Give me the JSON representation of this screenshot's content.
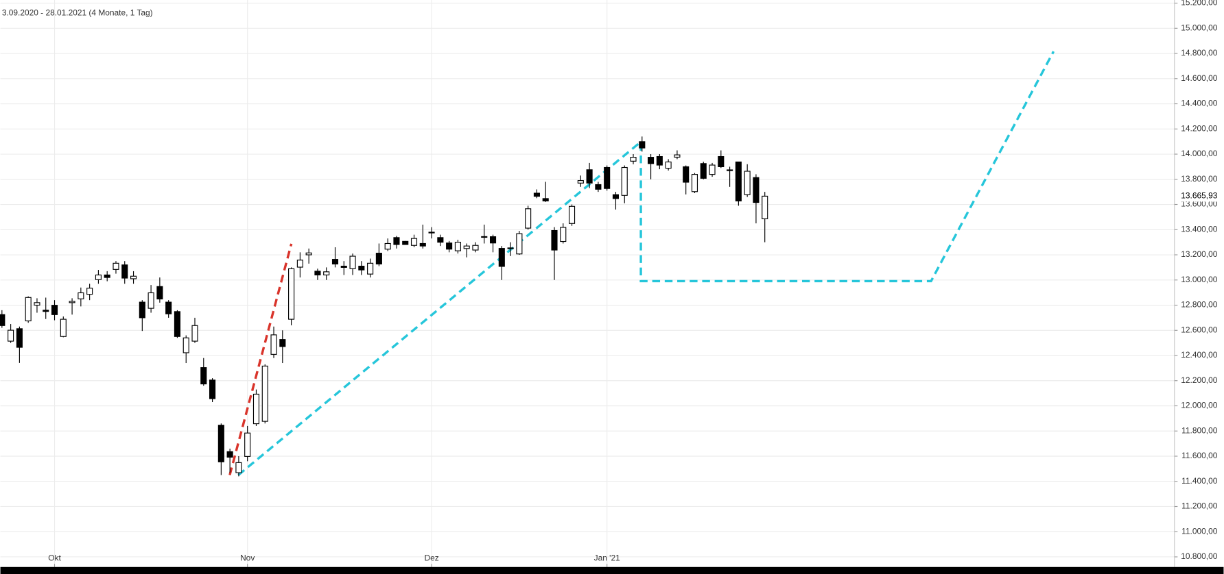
{
  "chart_data": {
    "type": "candlestick",
    "title": "3.09.2020 - 28.01.2021   (4 Monate, 1 Tag)",
    "categories": [
      null,
      null,
      null,
      null,
      null,
      null,
      "Okt",
      null,
      null,
      null,
      null,
      null,
      null,
      null,
      null,
      null,
      null,
      null,
      null,
      null,
      null,
      null,
      null,
      null,
      null,
      null,
      null,
      null,
      "Nov",
      null,
      null,
      null,
      null,
      null,
      null,
      null,
      null,
      null,
      null,
      null,
      null,
      null,
      null,
      null,
      null,
      null,
      null,
      null,
      null,
      "Dez",
      null,
      null,
      null,
      null,
      null,
      null,
      null,
      null,
      null,
      null,
      null,
      null,
      null,
      null,
      null,
      null,
      null,
      null,
      null,
      "Jan '21",
      null,
      null,
      null,
      null,
      null,
      null,
      null,
      null,
      null,
      null,
      null,
      null,
      null,
      null,
      null,
      null,
      null,
      null
    ],
    "open": [
      12725,
      12514,
      12613,
      12675,
      12800,
      12760,
      12799,
      12551,
      12820,
      12850,
      12886,
      13003,
      13040,
      13084,
      13120,
      13010,
      12824,
      12775,
      12948,
      12824,
      12749,
      12422,
      12514,
      12304,
      12205,
      11846,
      11636,
      11469,
      11598,
      11858,
      11877,
      12409,
      12527,
      12688,
      13102,
      13200,
      13070,
      13040,
      13164,
      13110,
      13090,
      13110,
      13047,
      13213,
      13245,
      13337,
      13307,
      13275,
      13290,
      13375,
      13337,
      13294,
      13232,
      13250,
      13238,
      13340,
      13344,
      13251,
      13255,
      13207,
      13412,
      13690,
      13647,
      13393,
      13306,
      13449,
      13770,
      13876,
      13758,
      13894,
      13678,
      13672,
      13944,
      14099,
      13975,
      13981,
      13888,
      13976,
      13900,
      13702,
      13925,
      13839,
      13981,
      13870,
      13938,
      13678,
      13814,
      13486
    ],
    "high": [
      12760,
      12650,
      12630,
      12870,
      12855,
      12860,
      12840,
      12710,
      12855,
      12940,
      12970,
      13080,
      13070,
      13150,
      13150,
      13070,
      12840,
      12960,
      13020,
      12840,
      12760,
      12560,
      12700,
      12380,
      12220,
      11860,
      11660,
      11600,
      11840,
      12130,
      12330,
      12630,
      12600,
      13100,
      13220,
      13250,
      13090,
      13100,
      13260,
      13150,
      13210,
      13150,
      13170,
      13290,
      13330,
      13350,
      13310,
      13360,
      13440,
      13420,
      13360,
      13310,
      13320,
      13290,
      13300,
      13440,
      13360,
      13270,
      13300,
      13390,
      13590,
      13720,
      13780,
      13420,
      13450,
      13600,
      13830,
      13930,
      13780,
      13910,
      13700,
      13910,
      14000,
      14140,
      14000,
      14000,
      13960,
      14030,
      13910,
      13850,
      13940,
      13930,
      14030,
      13900,
      13940,
      13920,
      13840,
      13700
    ],
    "low": [
      12620,
      12500,
      12341,
      12660,
      12740,
      12690,
      12680,
      12545,
      12725,
      12790,
      12840,
      12970,
      12990,
      13050,
      12970,
      12970,
      12595,
      12740,
      12820,
      12700,
      12540,
      12340,
      12500,
      12160,
      12030,
      11450,
      11470,
      11440,
      11560,
      11840,
      11860,
      12380,
      12340,
      12640,
      13020,
      13130,
      13000,
      13000,
      13100,
      13040,
      13040,
      13040,
      13020,
      13110,
      13230,
      13250,
      13280,
      13260,
      13250,
      13330,
      13270,
      13220,
      13210,
      13180,
      13220,
      13290,
      13220,
      13000,
      13190,
      13200,
      13400,
      13650,
      13620,
      13000,
      13290,
      13430,
      13740,
      13730,
      13700,
      13710,
      13560,
      13610,
      13920,
      14020,
      13800,
      13880,
      13870,
      13960,
      13680,
      13690,
      13800,
      13820,
      13890,
      13740,
      13590,
      13660,
      13450,
      13300
    ],
    "close": [
      12638,
      12601,
      12465,
      12861,
      12820,
      12750,
      12725,
      12688,
      12830,
      12898,
      12935,
      13040,
      13020,
      13133,
      13015,
      13030,
      12700,
      12898,
      12849,
      12731,
      12551,
      12540,
      12638,
      12174,
      12057,
      11555,
      11592,
      11549,
      11784,
      12093,
      12316,
      12564,
      12471,
      13090,
      13158,
      13215,
      13040,
      13065,
      13127,
      13100,
      13189,
      13080,
      13133,
      13127,
      13290,
      13282,
      13282,
      13330,
      13270,
      13380,
      13300,
      13245,
      13300,
      13270,
      13275,
      13345,
      13294,
      13108,
      13250,
      13368,
      13566,
      13665,
      13628,
      13238,
      13418,
      13585,
      13790,
      13770,
      13721,
      13727,
      13647,
      13894,
      13975,
      14049,
      13925,
      13913,
      13938,
      13994,
      13777,
      13839,
      13808,
      13913,
      13900,
      13875,
      13628,
      13864,
      13616,
      13665.93
    ],
    "up_color": "#ffffff",
    "down_color": "#000000",
    "ylim": [
      10800,
      15200
    ],
    "yticks": [
      {
        "value": 10800,
        "label": "10.800,00"
      },
      {
        "value": 11000,
        "label": "11.000,00"
      },
      {
        "value": 11200,
        "label": "11.200,00"
      },
      {
        "value": 11400,
        "label": "11.400,00"
      },
      {
        "value": 11600,
        "label": "11.600,00"
      },
      {
        "value": 11800,
        "label": "11.800,00"
      },
      {
        "value": 12000,
        "label": "12.000,00"
      },
      {
        "value": 12200,
        "label": "12.200,00"
      },
      {
        "value": 12400,
        "label": "12.400,00"
      },
      {
        "value": 12600,
        "label": "12.600,00"
      },
      {
        "value": 12800,
        "label": "12.800,00"
      },
      {
        "value": 13000,
        "label": "13.000,00"
      },
      {
        "value": 13200,
        "label": "13.200,00"
      },
      {
        "value": 13400,
        "label": "13.400,00"
      },
      {
        "value": 13600,
        "label": "13.600,00"
      },
      {
        "value": 13800,
        "label": "13.800,00"
      },
      {
        "value": 14000,
        "label": "14.000,00"
      },
      {
        "value": 14200,
        "label": "14.200,00"
      },
      {
        "value": 14400,
        "label": "14.400,00"
      },
      {
        "value": 14600,
        "label": "14.600,00"
      },
      {
        "value": 14800,
        "label": "14.800,00"
      },
      {
        "value": 15000,
        "label": "15.000,00"
      },
      {
        "value": 15200,
        "label": "15.200,00"
      }
    ],
    "last_price": {
      "value": 13665.93,
      "label": "13.665,93"
    },
    "grid": true
  }
}
